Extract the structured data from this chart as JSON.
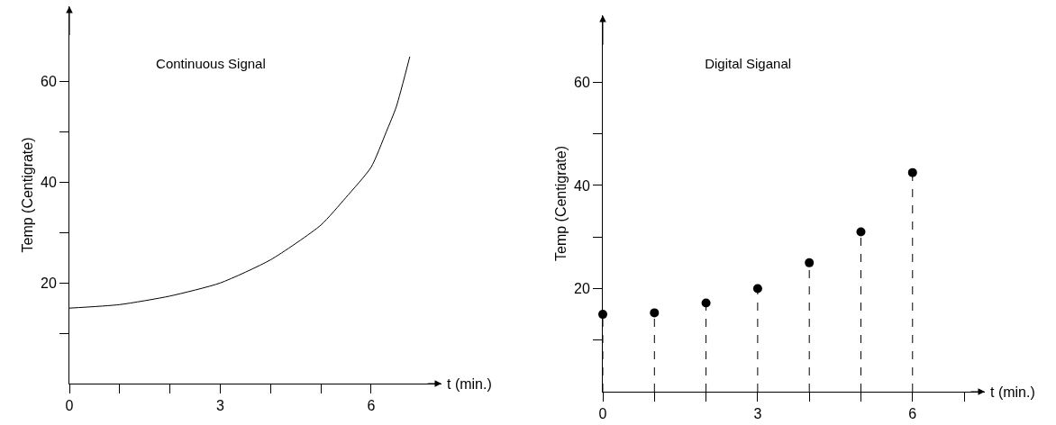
{
  "chart_data": [
    {
      "type": "line",
      "title": "Continuous Signal",
      "xlabel": "t (min.)",
      "ylabel": "Temp (Centigrate)",
      "x": [
        0,
        1,
        2,
        3,
        4,
        5,
        5.5,
        6,
        6.3,
        6.5,
        6.77
      ],
      "series": [
        {
          "color": "#000000",
          "values": [
            15,
            15.7,
            17.4,
            20,
            24.6,
            31.5,
            37,
            43,
            50,
            55,
            65
          ]
        }
      ],
      "xlim": [
        0,
        7.4
      ],
      "xticks": [
        0,
        {
          "value": 1,
          "label": null
        },
        {
          "value": 2,
          "label": null
        },
        3,
        {
          "value": 4,
          "label": null
        },
        {
          "value": 5,
          "label": null
        },
        6
      ],
      "ylim": [
        0,
        75
      ],
      "yticks": [
        {
          "value": 10,
          "label": null
        },
        20,
        {
          "value": 30,
          "label": null
        },
        40,
        {
          "value": 50,
          "label": null
        },
        60
      ],
      "grid": false,
      "legend": false,
      "marker": "none",
      "line_style": "solid"
    },
    {
      "type": "lollipop",
      "title": "Digital Siganal",
      "xlabel": "t (min.)",
      "ylabel": "Temp (Centigrate)",
      "x": [
        0,
        1,
        2,
        3,
        4,
        5,
        6
      ],
      "series": [
        {
          "color": "#000000",
          "values": [
            15,
            15.3,
            17.2,
            20,
            25,
            31,
            42.5
          ]
        }
      ],
      "xlim": [
        0,
        7.4
      ],
      "xticks": [
        0,
        {
          "value": 1,
          "label": null
        },
        {
          "value": 2,
          "label": null
        },
        3,
        {
          "value": 4,
          "label": null
        },
        {
          "value": 5,
          "label": null
        },
        6,
        {
          "value": 7,
          "label": null
        }
      ],
      "ylim": [
        0,
        73
      ],
      "yticks": [
        {
          "value": 10,
          "label": null
        },
        20,
        {
          "value": 30,
          "label": null
        },
        40,
        {
          "value": 50,
          "label": null
        },
        60
      ],
      "grid": false,
      "legend": false,
      "marker": "circle",
      "line_style": "dashed"
    }
  ]
}
